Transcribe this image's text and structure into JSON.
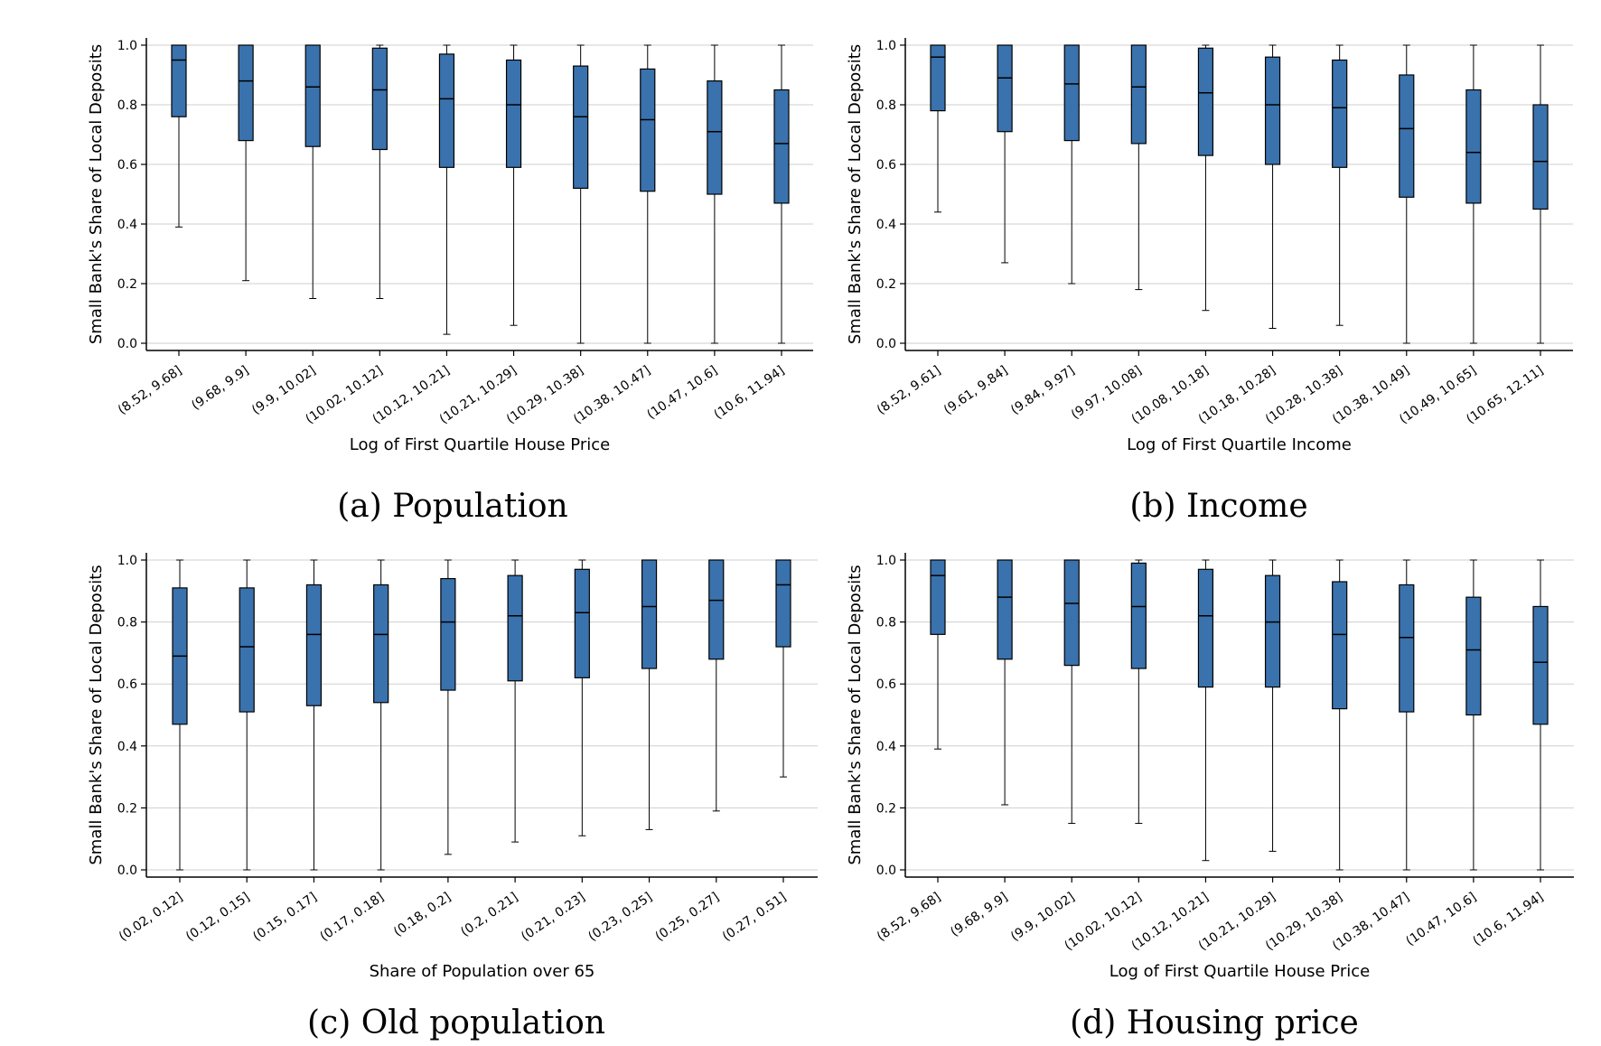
{
  "figure": {
    "captions": [
      "(a) Population",
      "(b) Income",
      "(c) Old population",
      "(d) Housing price"
    ]
  },
  "chart_data": [
    {
      "type": "box",
      "caption": "(a) Population",
      "xlabel": "Log of First Quartile House Price",
      "ylabel": "Small Bank's Share of Local Deposits",
      "ylim": [
        0,
        1.0
      ],
      "yticks": [
        0.0,
        0.2,
        0.4,
        0.6,
        0.8,
        1.0
      ],
      "ytick_labels": [
        "0.0",
        "0.2",
        "0.4",
        "0.6",
        "0.8",
        "1.0"
      ],
      "grid": "horizontal",
      "box_color": "#3a72ad",
      "categories": [
        "(8.52, 9.68]",
        "(9.68, 9.9]",
        "(9.9, 10.02]",
        "(10.02, 10.12]",
        "(10.12, 10.21]",
        "(10.21, 10.29]",
        "(10.29, 10.38]",
        "(10.38, 10.47]",
        "(10.47, 10.6]",
        "(10.6, 11.94]"
      ],
      "boxes": [
        {
          "whislo": 0.39,
          "q1": 0.76,
          "med": 0.95,
          "q3": 1.0,
          "whishi": 1.0
        },
        {
          "whislo": 0.21,
          "q1": 0.68,
          "med": 0.88,
          "q3": 1.0,
          "whishi": 1.0
        },
        {
          "whislo": 0.15,
          "q1": 0.66,
          "med": 0.86,
          "q3": 1.0,
          "whishi": 1.0
        },
        {
          "whislo": 0.15,
          "q1": 0.65,
          "med": 0.85,
          "q3": 0.99,
          "whishi": 1.0
        },
        {
          "whislo": 0.03,
          "q1": 0.59,
          "med": 0.82,
          "q3": 0.97,
          "whishi": 1.0
        },
        {
          "whislo": 0.06,
          "q1": 0.59,
          "med": 0.8,
          "q3": 0.95,
          "whishi": 1.0
        },
        {
          "whislo": 0.0,
          "q1": 0.52,
          "med": 0.76,
          "q3": 0.93,
          "whishi": 1.0
        },
        {
          "whislo": 0.0,
          "q1": 0.51,
          "med": 0.75,
          "q3": 0.92,
          "whishi": 1.0
        },
        {
          "whislo": 0.0,
          "q1": 0.5,
          "med": 0.71,
          "q3": 0.88,
          "whishi": 1.0
        },
        {
          "whislo": 0.0,
          "q1": 0.47,
          "med": 0.67,
          "q3": 0.85,
          "whishi": 1.0
        }
      ]
    },
    {
      "type": "box",
      "caption": "(b) Income",
      "xlabel": "Log of First Quartile Income",
      "ylabel": "Small Bank's Share of Local Deposits",
      "ylim": [
        0,
        1.0
      ],
      "yticks": [
        0.0,
        0.2,
        0.4,
        0.6,
        0.8,
        1.0
      ],
      "ytick_labels": [
        "0.0",
        "0.2",
        "0.4",
        "0.6",
        "0.8",
        "1.0"
      ],
      "grid": "horizontal",
      "box_color": "#3a72ad",
      "categories": [
        "(8.52, 9.61]",
        "(9.61, 9.84]",
        "(9.84, 9.97]",
        "(9.97, 10.08]",
        "(10.08, 10.18]",
        "(10.18, 10.28]",
        "(10.28, 10.38]",
        "(10.38, 10.49]",
        "(10.49, 10.65]",
        "(10.65, 12.11]"
      ],
      "boxes": [
        {
          "whislo": 0.44,
          "q1": 0.78,
          "med": 0.96,
          "q3": 1.0,
          "whishi": 1.0
        },
        {
          "whislo": 0.27,
          "q1": 0.71,
          "med": 0.89,
          "q3": 1.0,
          "whishi": 1.0
        },
        {
          "whislo": 0.2,
          "q1": 0.68,
          "med": 0.87,
          "q3": 1.0,
          "whishi": 1.0
        },
        {
          "whislo": 0.18,
          "q1": 0.67,
          "med": 0.86,
          "q3": 1.0,
          "whishi": 1.0
        },
        {
          "whislo": 0.11,
          "q1": 0.63,
          "med": 0.84,
          "q3": 0.99,
          "whishi": 1.0
        },
        {
          "whislo": 0.05,
          "q1": 0.6,
          "med": 0.8,
          "q3": 0.96,
          "whishi": 1.0
        },
        {
          "whislo": 0.06,
          "q1": 0.59,
          "med": 0.79,
          "q3": 0.95,
          "whishi": 1.0
        },
        {
          "whislo": 0.0,
          "q1": 0.49,
          "med": 0.72,
          "q3": 0.9,
          "whishi": 1.0
        },
        {
          "whislo": 0.0,
          "q1": 0.47,
          "med": 0.64,
          "q3": 0.85,
          "whishi": 1.0
        },
        {
          "whislo": 0.0,
          "q1": 0.45,
          "med": 0.61,
          "q3": 0.8,
          "whishi": 1.0
        }
      ]
    },
    {
      "type": "box",
      "caption": "(c) Old population",
      "xlabel": "Share of Population over 65",
      "ylabel": "Small Bank's Share of Local Deposits",
      "ylim": [
        0,
        1.0
      ],
      "yticks": [
        0.0,
        0.2,
        0.4,
        0.6,
        0.8,
        1.0
      ],
      "ytick_labels": [
        "0.0",
        "0.2",
        "0.4",
        "0.6",
        "0.8",
        "1.0"
      ],
      "grid": "horizontal",
      "box_color": "#3a72ad",
      "categories": [
        "(0.02, 0.12]",
        "(0.12, 0.15]",
        "(0.15, 0.17]",
        "(0.17, 0.18]",
        "(0.18, 0.2]",
        "(0.2, 0.21]",
        "(0.21, 0.23]",
        "(0.23, 0.25]",
        "(0.25, 0.27]",
        "(0.27, 0.51]"
      ],
      "boxes": [
        {
          "whislo": 0.0,
          "q1": 0.47,
          "med": 0.69,
          "q3": 0.91,
          "whishi": 1.0
        },
        {
          "whislo": 0.0,
          "q1": 0.51,
          "med": 0.72,
          "q3": 0.91,
          "whishi": 1.0
        },
        {
          "whislo": 0.0,
          "q1": 0.53,
          "med": 0.76,
          "q3": 0.92,
          "whishi": 1.0
        },
        {
          "whislo": 0.0,
          "q1": 0.54,
          "med": 0.76,
          "q3": 0.92,
          "whishi": 1.0
        },
        {
          "whislo": 0.05,
          "q1": 0.58,
          "med": 0.8,
          "q3": 0.94,
          "whishi": 1.0
        },
        {
          "whislo": 0.09,
          "q1": 0.61,
          "med": 0.82,
          "q3": 0.95,
          "whishi": 1.0
        },
        {
          "whislo": 0.11,
          "q1": 0.62,
          "med": 0.83,
          "q3": 0.97,
          "whishi": 1.0
        },
        {
          "whislo": 0.13,
          "q1": 0.65,
          "med": 0.85,
          "q3": 1.0,
          "whishi": 1.0
        },
        {
          "whislo": 0.19,
          "q1": 0.68,
          "med": 0.87,
          "q3": 1.0,
          "whishi": 1.0
        },
        {
          "whislo": 0.3,
          "q1": 0.72,
          "med": 0.92,
          "q3": 1.0,
          "whishi": 1.0
        }
      ]
    },
    {
      "type": "box",
      "caption": "(d) Housing price",
      "xlabel": "Log of First Quartile House Price",
      "ylabel": "Small Bank's Share of Local Deposits",
      "ylim": [
        0,
        1.0
      ],
      "yticks": [
        0.0,
        0.2,
        0.4,
        0.6,
        0.8,
        1.0
      ],
      "ytick_labels": [
        "0.0",
        "0.2",
        "0.4",
        "0.6",
        "0.8",
        "1.0"
      ],
      "grid": "horizontal",
      "box_color": "#3a72ad",
      "categories": [
        "(8.52, 9.68]",
        "(9.68, 9.9]",
        "(9.9, 10.02]",
        "(10.02, 10.12]",
        "(10.12, 10.21]",
        "(10.21, 10.29]",
        "(10.29, 10.38]",
        "(10.38, 10.47]",
        "(10.47, 10.6]",
        "(10.6, 11.94]"
      ],
      "boxes": [
        {
          "whislo": 0.39,
          "q1": 0.76,
          "med": 0.95,
          "q3": 1.0,
          "whishi": 1.0
        },
        {
          "whislo": 0.21,
          "q1": 0.68,
          "med": 0.88,
          "q3": 1.0,
          "whishi": 1.0
        },
        {
          "whislo": 0.15,
          "q1": 0.66,
          "med": 0.86,
          "q3": 1.0,
          "whishi": 1.0
        },
        {
          "whislo": 0.15,
          "q1": 0.65,
          "med": 0.85,
          "q3": 0.99,
          "whishi": 1.0
        },
        {
          "whislo": 0.03,
          "q1": 0.59,
          "med": 0.82,
          "q3": 0.97,
          "whishi": 1.0
        },
        {
          "whislo": 0.06,
          "q1": 0.59,
          "med": 0.8,
          "q3": 0.95,
          "whishi": 1.0
        },
        {
          "whislo": 0.0,
          "q1": 0.52,
          "med": 0.76,
          "q3": 0.93,
          "whishi": 1.0
        },
        {
          "whislo": 0.0,
          "q1": 0.51,
          "med": 0.75,
          "q3": 0.92,
          "whishi": 1.0
        },
        {
          "whislo": 0.0,
          "q1": 0.5,
          "med": 0.71,
          "q3": 0.88,
          "whishi": 1.0
        },
        {
          "whislo": 0.0,
          "q1": 0.47,
          "med": 0.67,
          "q3": 0.85,
          "whishi": 1.0
        }
      ]
    }
  ]
}
